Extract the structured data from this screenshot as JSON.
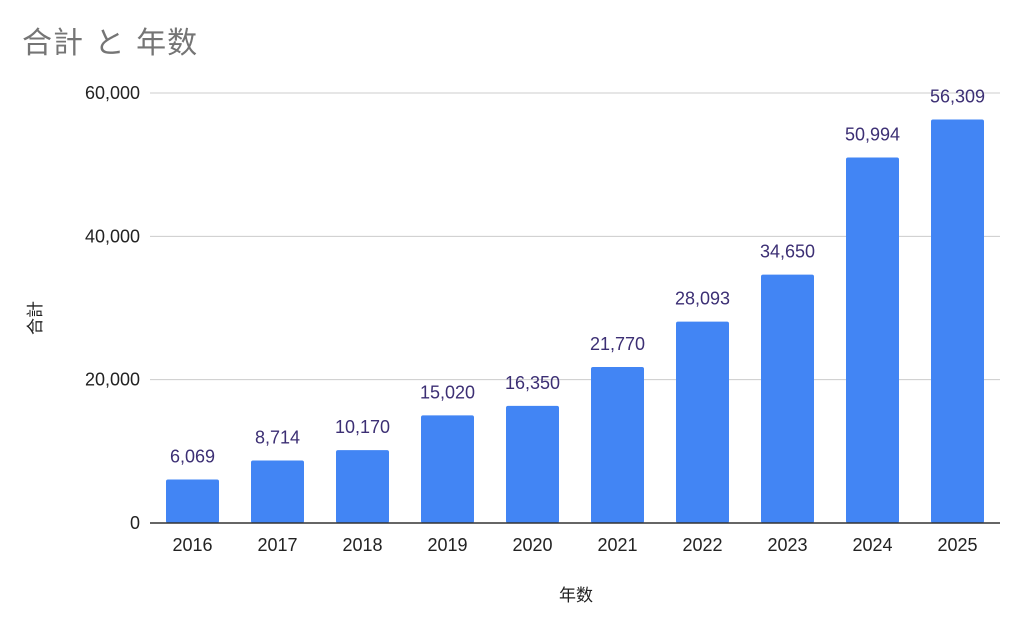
{
  "chart_data": {
    "type": "bar",
    "title": "合計 と 年数",
    "xlabel": "年数",
    "ylabel": "合計",
    "categories": [
      "2016",
      "2017",
      "2018",
      "2019",
      "2020",
      "2021",
      "2022",
      "2023",
      "2024",
      "2025"
    ],
    "values": [
      6069,
      8714,
      10170,
      15020,
      16350,
      21770,
      28093,
      34650,
      50994,
      56309
    ],
    "data_labels": [
      "6,069",
      "8,714",
      "10,170",
      "15,020",
      "16,350",
      "21,770",
      "28,093",
      "34,650",
      "50,994",
      "56,309"
    ],
    "ylim": [
      0,
      60000
    ],
    "yticks": [
      0,
      20000,
      40000,
      60000
    ],
    "ytick_labels": [
      "0",
      "20,000",
      "40,000",
      "60,000"
    ],
    "grid": true,
    "legend": "none",
    "colors": {
      "bar": "#4285f4",
      "data_label": "#3c2f74",
      "grid": "#cccccc",
      "axis": "#333333",
      "title": "#757575"
    }
  }
}
